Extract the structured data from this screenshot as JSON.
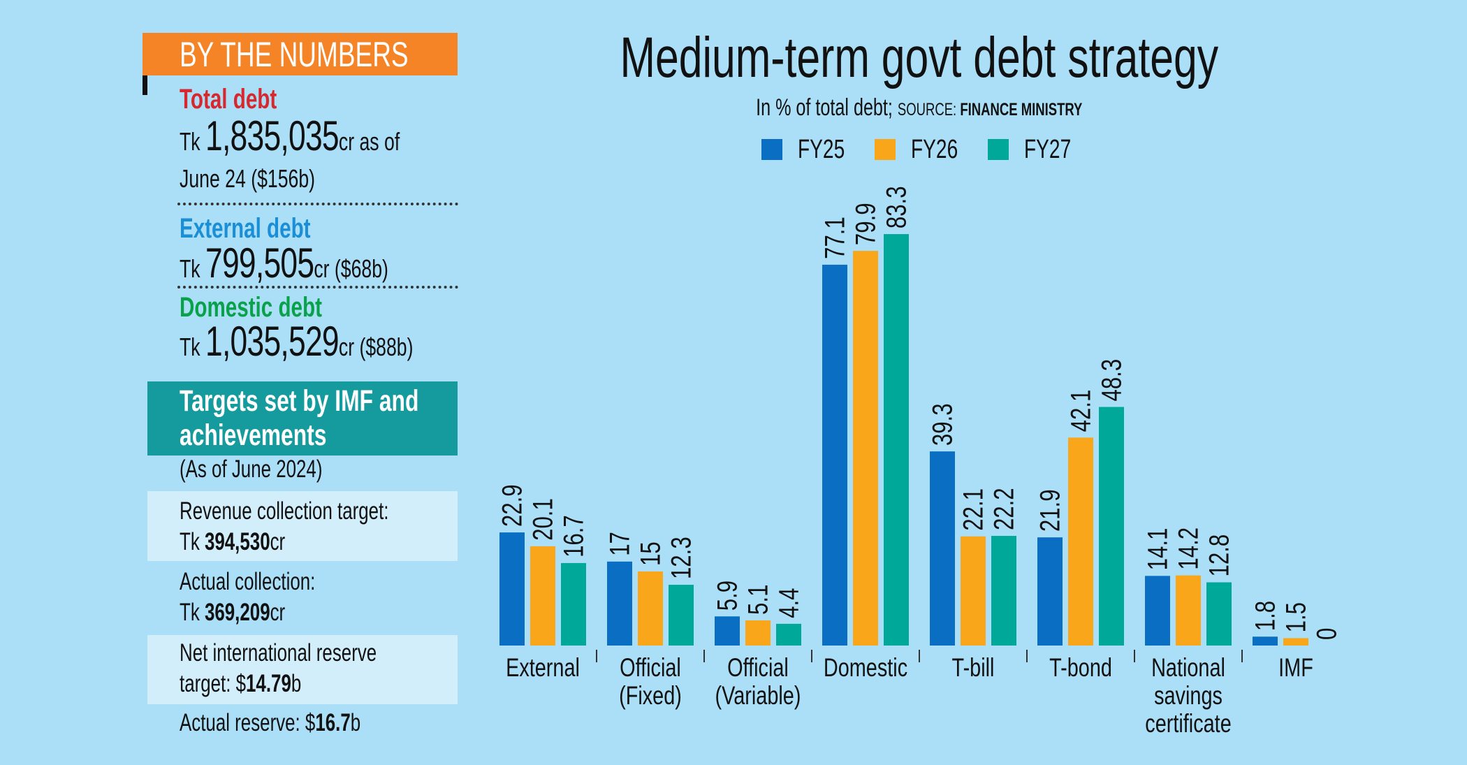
{
  "left_panel": {
    "header": "BY THE NUMBERS",
    "total_debt": {
      "label": "Total debt",
      "prefix": "Tk ",
      "amount": "1,835,035",
      "suffix": "cr as of",
      "line2": "June 24 ($156b)"
    },
    "external_debt": {
      "label": "External debt",
      "prefix": "Tk ",
      "amount": "799,505",
      "suffix": "cr ($68b)"
    },
    "domestic_debt": {
      "label": "Domestic debt",
      "prefix": "Tk ",
      "amount": "1,035,529",
      "suffix": "cr ($88b)"
    },
    "imf_box": {
      "title_line1": "Targets set by IMF and",
      "title_line2": "achievements",
      "as_of": "(As of June 2024)",
      "revenue_target": {
        "line1": "Revenue collection target:",
        "prefix": "Tk ",
        "amount": "394,530",
        "suffix": "cr"
      },
      "actual_collection": {
        "line1": "Actual collection:",
        "prefix": "Tk ",
        "amount": "369,209",
        "suffix": "cr"
      },
      "reserve_target": {
        "line1": "Net international reserve",
        "prefix": "target: $",
        "amount": "14.79",
        "suffix": "b"
      },
      "actual_reserve": {
        "prefix": "Actual reserve: $",
        "amount": "16.7",
        "suffix": "b"
      }
    },
    "colors": {
      "header": "#f58426",
      "total": "#d7282f",
      "external": "#1a8fd6",
      "domestic": "#0aa14b",
      "teal": "#159a9d"
    }
  },
  "chart_data": {
    "type": "bar",
    "title": "Medium-term govt debt strategy",
    "subtitle": "In % of total debt; ",
    "source_label": "SOURCE: ",
    "source": "FINANCE MINISTRY",
    "categories": [
      "External",
      "Official\n(Fixed)",
      "Official\n(Variable)",
      "Domestic",
      "T-bill",
      "T-bond",
      "National\nsavings\ncertificate",
      "IMF"
    ],
    "series": [
      {
        "name": "FY25",
        "color": "#0a6fc2",
        "values": [
          22.9,
          17,
          5.9,
          77.1,
          39.3,
          21.9,
          14.1,
          1.8
        ]
      },
      {
        "name": "FY26",
        "color": "#f9a61b",
        "values": [
          20.1,
          15,
          5.1,
          79.9,
          22.1,
          42.1,
          14.2,
          1.5
        ]
      },
      {
        "name": "FY27",
        "color": "#00a89a",
        "values": [
          16.7,
          12.3,
          4.4,
          83.3,
          22.2,
          48.3,
          12.8,
          0
        ]
      }
    ],
    "ylim": [
      0,
      90
    ],
    "grid": false,
    "legend": "top",
    "data_labels": true
  }
}
